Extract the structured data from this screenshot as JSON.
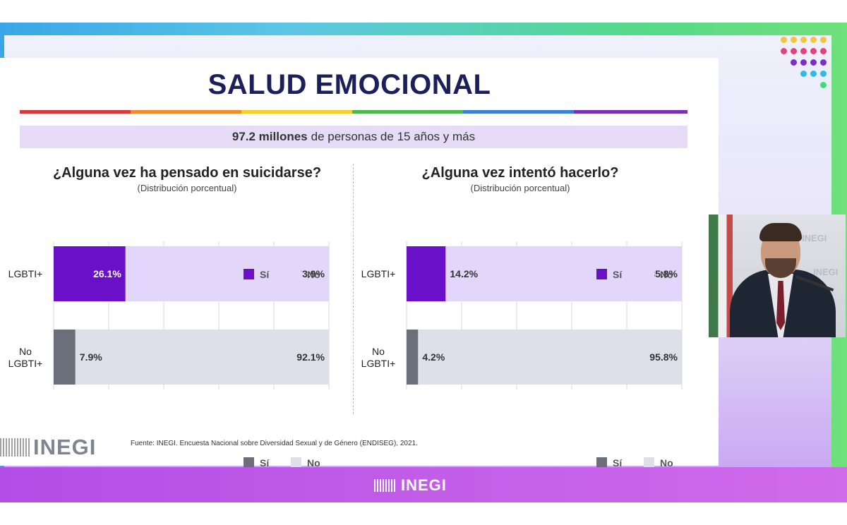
{
  "slide": {
    "title": "SALUD EMOCIONAL",
    "subtitle_bold": "97.2 millones",
    "subtitle_rest": "de personas de 15 años y más",
    "source": "Fuente:  INEGI. Encuesta Nacional sobre Diversidad Sexual y de Género (ENDISEG), 2021.",
    "logo_text": "INEGI"
  },
  "broadcast": {
    "bottom_logo_text": "INEGI",
    "watermark_text": "INEGI"
  },
  "colors": {
    "si_lgbti": "#6a10c9",
    "no_lgbti": "#e3d6fb",
    "si_nolgbti": "#6b6f7b",
    "no_nolgbti": "#dde0e8",
    "title": "#1b1f5c"
  },
  "chart_data": [
    {
      "type": "bar",
      "orientation": "horizontal",
      "stacked": true,
      "title": "¿Alguna vez ha pensado en suicidarse?",
      "subtitle": "(Distribución porcentual)",
      "categories": [
        "LGBTI+",
        "No LGBTI+"
      ],
      "series": [
        {
          "name": "Sí",
          "values": [
            26.1,
            7.9
          ]
        },
        {
          "name": "No",
          "values": [
            73.9,
            92.1
          ]
        }
      ],
      "labels": [
        [
          "26.1%",
          "73.9%"
        ],
        [
          "7.9%",
          "92.1%"
        ]
      ],
      "xlim": [
        0,
        100
      ],
      "grid": true,
      "legend": "top-right and bottom-right"
    },
    {
      "type": "bar",
      "orientation": "horizontal",
      "stacked": true,
      "title": "¿Alguna vez intentó hacerlo?",
      "subtitle": "(Distribución porcentual)",
      "categories": [
        "LGBTI+",
        "No LGBTI+"
      ],
      "series": [
        {
          "name": "Sí",
          "values": [
            14.2,
            4.2
          ]
        },
        {
          "name": "No",
          "values": [
            85.8,
            95.8
          ]
        }
      ],
      "labels": [
        [
          "14.2%",
          "85.8%"
        ],
        [
          "4.2%",
          "95.8%"
        ]
      ],
      "xlim": [
        0,
        100
      ],
      "grid": true,
      "legend": "top-right and bottom-right"
    }
  ]
}
